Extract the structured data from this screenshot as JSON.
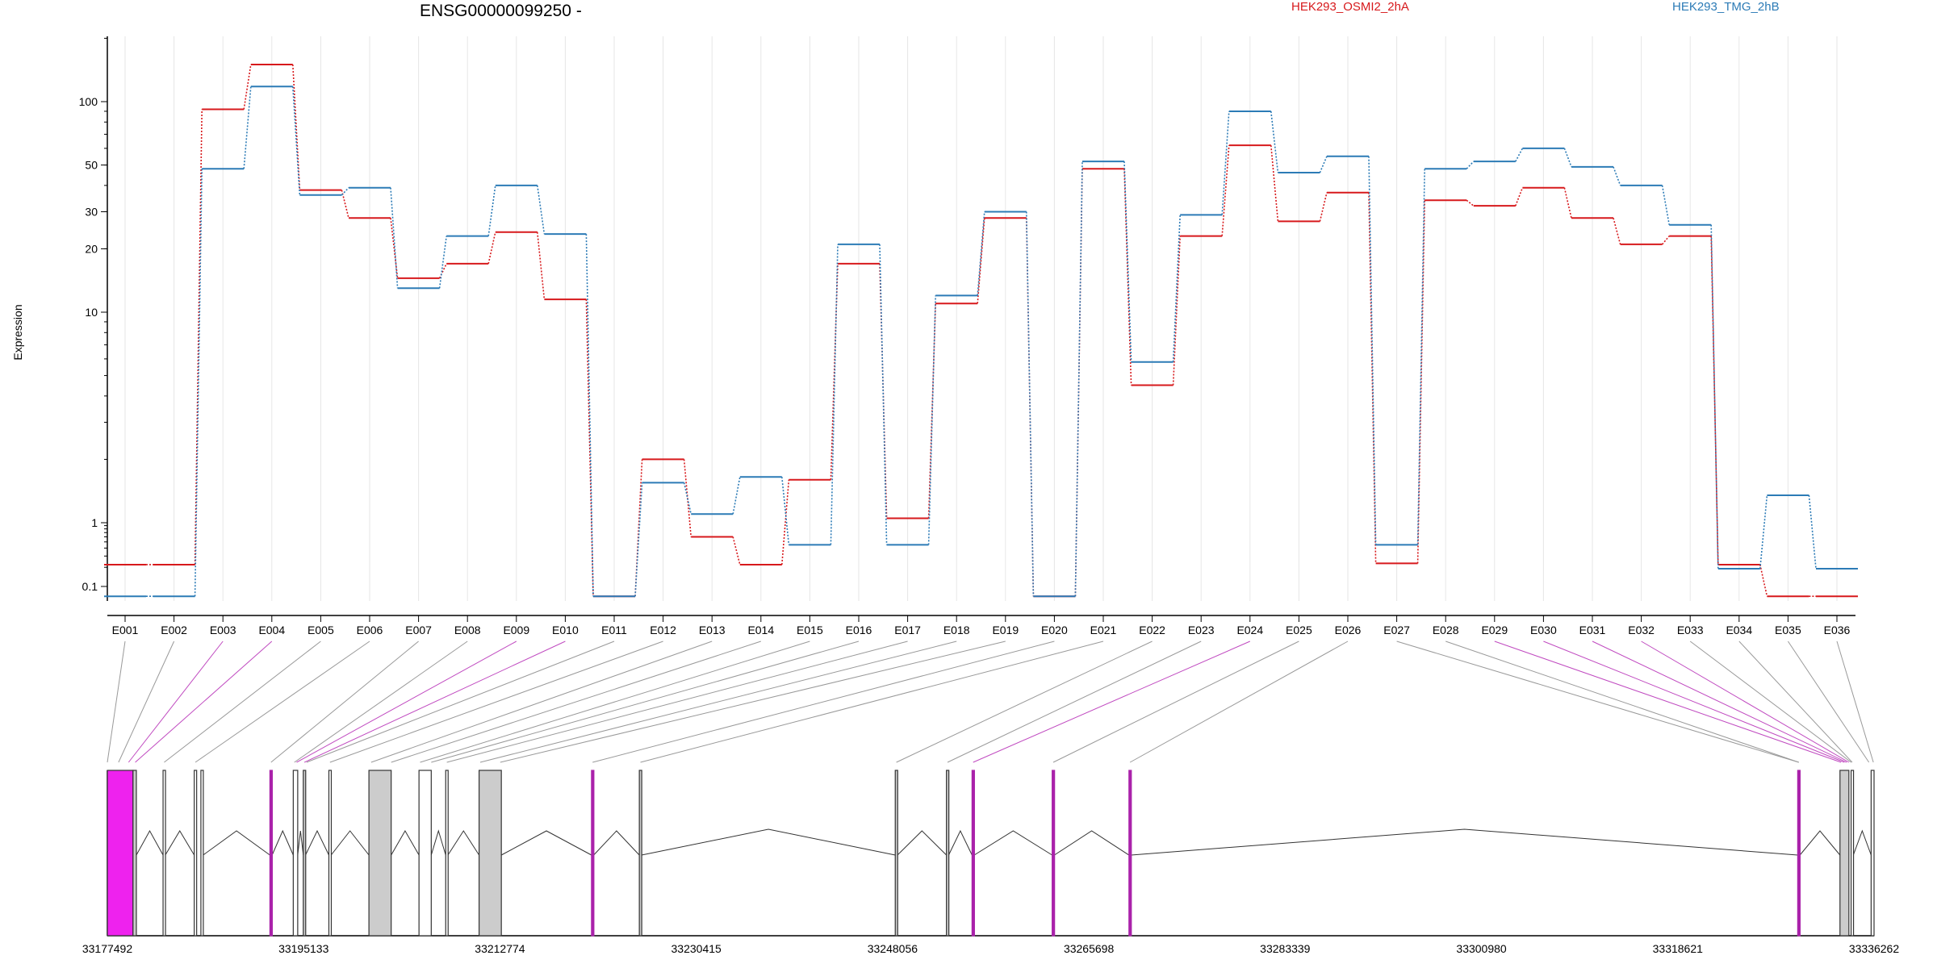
{
  "chart_data": {
    "type": "line",
    "title": "ENSG00000099250 -",
    "ylabel": "Expression",
    "y_scale": "log",
    "y_ticks": [
      "0.1",
      "1",
      "10",
      "20",
      "30",
      "50",
      "100"
    ],
    "grid": true,
    "legend_placement": "top",
    "categories": [
      "E001",
      "E002",
      "E003",
      "E004",
      "E005",
      "E006",
      "E007",
      "E008",
      "E009",
      "E010",
      "E011",
      "E012",
      "E013",
      "E014",
      "E015",
      "E016",
      "E017",
      "E018",
      "E019",
      "E020",
      "E021",
      "E022",
      "E023",
      "E024",
      "E025",
      "E026",
      "E027",
      "E028",
      "E029",
      "E030",
      "E031",
      "E032",
      "E033",
      "E034",
      "E035",
      "E036"
    ],
    "series": [
      {
        "name": "HEK293_OSMI2_2hA",
        "color": "#d7191c",
        "values": [
          0.22,
          0.22,
          92,
          150,
          38,
          28,
          14.5,
          17,
          24,
          11.5,
          0.07,
          2,
          0.6,
          0.22,
          1.6,
          17,
          1.05,
          11,
          28,
          0.07,
          48,
          4.5,
          23,
          62,
          27,
          37,
          0.23,
          34,
          32,
          39,
          28,
          21,
          23,
          0.22,
          0.07,
          0.07
        ]
      },
      {
        "name": "HEK293_TMG_2hB",
        "color": "#2c7bb6",
        "values": [
          0.07,
          0.07,
          48,
          118,
          36,
          39,
          13,
          23,
          40,
          23.5,
          0.07,
          1.55,
          1.1,
          1.65,
          0.45,
          21,
          0.45,
          12,
          30,
          0.07,
          52,
          5.8,
          29,
          90,
          46,
          55,
          0.45,
          48,
          52,
          60,
          49,
          40,
          26,
          0.19,
          1.35,
          0.19
        ]
      }
    ],
    "genomic_axis": {
      "tick_labels": [
        "33177492",
        "33195133",
        "33212774",
        "33230415",
        "33248056",
        "33265698",
        "33283339",
        "33300980",
        "33318621",
        "33336262"
      ],
      "range": [
        33177492,
        33336262
      ]
    },
    "exons": [
      {
        "start": 33177492,
        "end": 33179800,
        "fill": "#ee22ee"
      },
      {
        "start": 33179800,
        "end": 33180100,
        "fill": "#cccccc"
      },
      {
        "start": 33182500,
        "end": 33182700,
        "fill": "#ffffff"
      },
      {
        "start": 33185300,
        "end": 33185500,
        "fill": "#ffffff"
      },
      {
        "start": 33185900,
        "end": 33186100,
        "fill": "#ffffff"
      },
      {
        "start": 33192100,
        "end": 33192300,
        "fill": "#aa22aa"
      },
      {
        "start": 33194200,
        "end": 33194600,
        "fill": "#ffffff"
      },
      {
        "start": 33195100,
        "end": 33195300,
        "fill": "#cccccc"
      },
      {
        "start": 33197400,
        "end": 33197600,
        "fill": "#ffffff"
      },
      {
        "start": 33201000,
        "end": 33203000,
        "fill": "#cccccc"
      },
      {
        "start": 33205500,
        "end": 33206600,
        "fill": "#ffffff"
      },
      {
        "start": 33207900,
        "end": 33208100,
        "fill": "#ffffff"
      },
      {
        "start": 33210900,
        "end": 33212900,
        "fill": "#cccccc"
      },
      {
        "start": 33221000,
        "end": 33221200,
        "fill": "#aa22aa"
      },
      {
        "start": 33225300,
        "end": 33225500,
        "fill": "#cccccc"
      },
      {
        "start": 33248300,
        "end": 33248500,
        "fill": "#cccccc"
      },
      {
        "start": 33252900,
        "end": 33253100,
        "fill": "#cccccc"
      },
      {
        "start": 33255200,
        "end": 33255400,
        "fill": "#aa22aa"
      },
      {
        "start": 33262400,
        "end": 33262600,
        "fill": "#aa22aa"
      },
      {
        "start": 33269300,
        "end": 33269500,
        "fill": "#aa22aa"
      },
      {
        "start": 33329400,
        "end": 33329600,
        "fill": "#aa22aa"
      },
      {
        "start": 33333200,
        "end": 33334000,
        "fill": "#cccccc"
      },
      {
        "start": 33334200,
        "end": 33334400,
        "fill": "#ffffff"
      },
      {
        "start": 33336000,
        "end": 33336262,
        "fill": "#ffffff"
      }
    ]
  }
}
